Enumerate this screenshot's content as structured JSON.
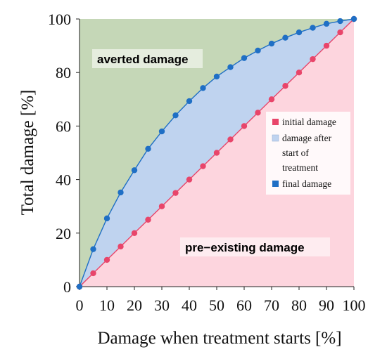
{
  "chart_data": {
    "type": "area",
    "xlabel": "Damage when treatment starts [%]",
    "ylabel": "Total damage [%]",
    "xlim": [
      0,
      100
    ],
    "ylim": [
      0,
      100
    ],
    "xticks": [
      0,
      10,
      20,
      30,
      40,
      50,
      60,
      70,
      80,
      90,
      100
    ],
    "yticks": [
      0,
      20,
      40,
      60,
      80,
      100
    ],
    "grid": false,
    "legend_position": "center-right",
    "region_labels": {
      "averted": "averted damage",
      "pre_existing": "pre−existing damage"
    },
    "legend": {
      "initial": "initial damage",
      "after_line1": "damage after",
      "after_line2": "start of",
      "after_line3": "treatment",
      "final": "final damage"
    },
    "series": [
      {
        "name": "initial damage",
        "color": "#e8456a",
        "x": [
          0,
          5,
          10,
          15,
          20,
          25,
          30,
          35,
          40,
          45,
          50,
          55,
          60,
          65,
          70,
          75,
          80,
          85,
          90,
          95,
          100
        ],
        "y": [
          0,
          5,
          10,
          15,
          20,
          25,
          30,
          35,
          40,
          45,
          50,
          55,
          60,
          65,
          70,
          75,
          80,
          85,
          90,
          95,
          100
        ]
      },
      {
        "name": "final damage",
        "color": "#1f6fc5",
        "x": [
          0,
          5,
          10,
          15,
          20,
          25,
          30,
          35,
          40,
          45,
          50,
          55,
          60,
          65,
          70,
          75,
          80,
          85,
          90,
          95,
          100
        ],
        "y": [
          0,
          14,
          25.5,
          35.2,
          43.5,
          51.5,
          58,
          64,
          69.3,
          74.2,
          78.5,
          82,
          85.4,
          88.2,
          90.8,
          93,
          95,
          96.7,
          98.2,
          99.2,
          100
        ]
      }
    ],
    "colors": {
      "averted_fill": "#c5d7b7",
      "after_fill": "#bfd3ef",
      "pre_fill": "#fdd5de",
      "averted_text": "#1e8068",
      "pre_text": "#c8336a",
      "label_bg": "#ffffff"
    }
  }
}
